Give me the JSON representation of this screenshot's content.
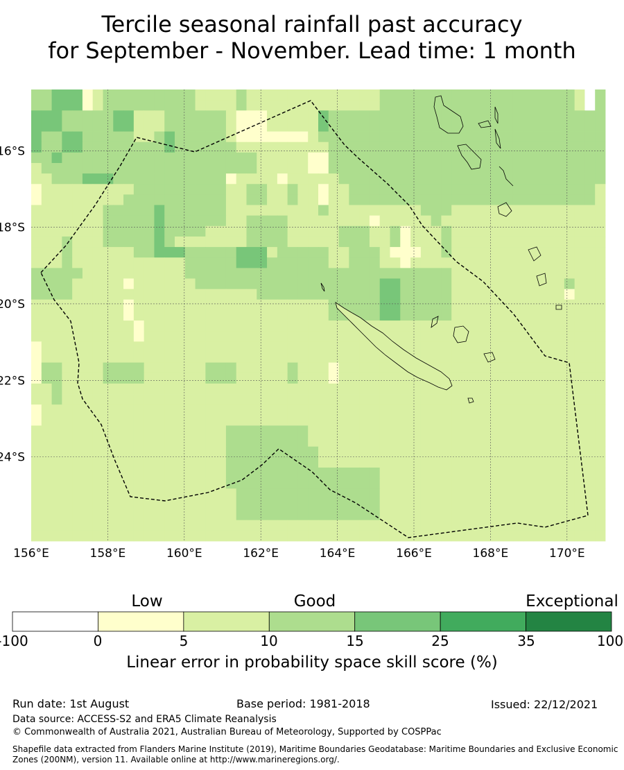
{
  "title": {
    "line1": "Tercile seasonal rainfall past accuracy",
    "line2": "for September - November. Lead time: 1 month"
  },
  "map": {
    "lon_range": [
      156,
      171
    ],
    "lat_range": [
      -26.2,
      -14.4
    ],
    "x_ticks": [
      {
        "value": 156,
        "label": "156°E"
      },
      {
        "value": 158,
        "label": "158°E"
      },
      {
        "value": 160,
        "label": "160°E"
      },
      {
        "value": 162,
        "label": "162°E"
      },
      {
        "value": 164,
        "label": "164°E"
      },
      {
        "value": 166,
        "label": "166°E"
      },
      {
        "value": 168,
        "label": "168°E"
      },
      {
        "value": 170,
        "label": "170°E"
      }
    ],
    "y_ticks": [
      {
        "value": -16,
        "label": "16°S"
      },
      {
        "value": -18,
        "label": "18°S"
      },
      {
        "value": -20,
        "label": "20°S"
      },
      {
        "value": -22,
        "label": "22°S"
      },
      {
        "value": -24,
        "label": "24°S"
      }
    ],
    "grid": true,
    "eez_boundary": "dashed",
    "skill_grid_note": "cell classes: 0 = -100–0, 1 = 0–5, 2 = 5–10, 3 = 10–15, 4 = 15–25",
    "skill_grid": [
      "33444123333333332222322222222222223333333333333333333203",
      "33444123333333332222322222222222223333333333333333333203",
      "44433333442223333332111222224333333333333333333333333333",
      "44433333442223333332111222224333333333333333333333333333",
      "43344333332234333332111111123333333333333333333333333333",
      "43344333333334333333222222222333333333333333333333333333",
      "33433333333333333333332222211333333333333333333333333333",
      "23333333333333333333332222211333333333333333333333333333",
      "22333444333333333331222212222233333333333333333333333333",
      "12222222223333333332233223221223333333333333333333333332",
      "12222222233333333332233223221223333333333333333333333332",
      "22222223333343333332222222223222222222333222222222222222",
      "22222223333343333332233332222222212222232222222222222222",
      "22222223333343333222233332222233322312223222222222222222",
      "22232223333343222222233332222233322312223222222222222222",
      "22232222223344433333444233333223332111223222222222222222",
      "22232222222222233333444333333223332212222222222222222222",
      "33333222222222233333333333333333333333333222222222222222",
      "33332222212222223333333333333333334433333222222222223222",
      "33332222222222222222223333333333334433333222222222221222",
      "22222222212222222222222222222333334433333222222222222222",
      "22222222212222222222222222222333334433333222222222222222",
      "22222222221222222222222222222222222222222222222222222222",
      "22222222221222222222222222222222222222222222222222222222",
      "12222222222222222222222222222222222222222222222222222222",
      "12222222222222222222222222222222222222222222222222222222",
      "13322223333222222333222223222122222222222222222222222222",
      "13322223333222222333222223222122222222222222222222222222",
      "22322222222222222222222222222222222222222222222222222222",
      "22322222222222222222222222222222222222222222222222222222",
      "12222222222222222222222222222222222222222222222222222222",
      "12222222222222222222222222222222222222222222222222222222",
      "22222222222222222223333333322222222222222222222222222222",
      "22222222222222222223333333322222222222222222222222222222",
      "22222222222222222223333333332222222222222222222222222222",
      "22222222222222222223333333332222222222222222222222222222",
      "22222222222222222223333333333333332222222222222222222222",
      "22222222222222222223333333333333332222222222222222222222",
      "22222222222222222222333333333333332222222222222222222222",
      "22222222222222222222333333333333332222222222222222222222",
      "22222222222222222222333333333333332222222222222222222222",
      "22222222222222222222222222222222222222222222222222222222",
      "22222222222222222222222222222222222222222222222222222222"
    ]
  },
  "colorbar": {
    "categories": [
      "Low",
      "Good",
      "Exceptional"
    ],
    "ticks": [
      "-100",
      "0",
      "5",
      "10",
      "15",
      "25",
      "35",
      "100"
    ],
    "colors": [
      "#ffffff",
      "#ffffcc",
      "#d9f0a3",
      "#addd8e",
      "#78c679",
      "#41ab5d",
      "#238443"
    ],
    "label": "Linear error in probability space skill score (%)"
  },
  "footer": {
    "run_date": "Run date: 1st August",
    "base_period": "Base period: 1981-2018",
    "issued": "Issued: 22/12/2021",
    "data_source": "Data source: ACCESS-S2 and ERA5 Climate Reanalysis",
    "copyright": "© Commonwealth of Australia 2021, Australian Bureau of Meteorology, Supported by COSPPac",
    "shapefile": "Shapefile data extracted from Flanders Marine Institute (2019), Maritime Boundaries Geodatabase: Maritime Boundaries and Exclusive Economic Zones (200NM), version 11. Available online at http://www.marineregions.org/."
  }
}
